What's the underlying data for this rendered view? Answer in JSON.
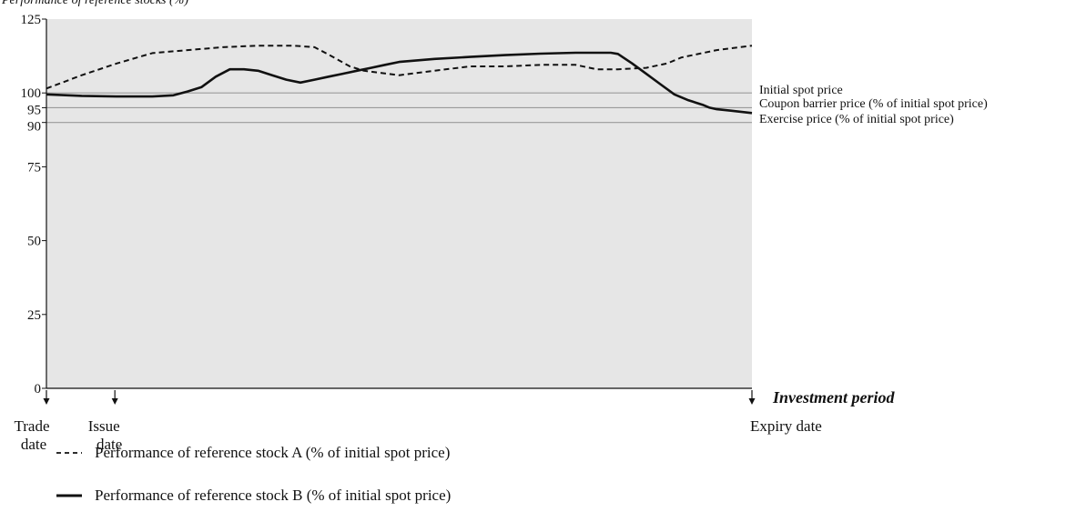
{
  "chart_data": {
    "type": "line",
    "title": "",
    "header_text": "Performance of reference stocks (%)",
    "xlabel": "Investment period",
    "ylabel": "",
    "xlim": [
      0,
      100
    ],
    "ylim": [
      0,
      125
    ],
    "yticks": [
      0,
      25,
      50,
      75,
      90,
      95,
      100,
      125
    ],
    "grid": false,
    "events": [
      {
        "x": 0,
        "lines": [
          "Trade",
          "date"
        ],
        "align": "center"
      },
      {
        "x": 9.7,
        "lines": [
          "Issue",
          "date"
        ],
        "align": "center"
      },
      {
        "x": 100,
        "lines": [
          "Expiry date"
        ],
        "align": "start"
      }
    ],
    "reference_lines": [
      {
        "name": "Initial spot price",
        "y": 100,
        "label": "Initial spot price"
      },
      {
        "name": "Coupon barrier price",
        "y": 95,
        "label": "Coupon barrier price (% of initial spot price)"
      },
      {
        "name": "Exercise price",
        "y": 90,
        "label": "Exercise price (% of initial spot price)"
      }
    ],
    "series": [
      {
        "name": "Performance of reference stock A (% of initial spot price)",
        "style": "dashed",
        "x": [
          0,
          5,
          10,
          15,
          20,
          25,
          30,
          35,
          38,
          40,
          43,
          45,
          50,
          55,
          60,
          65,
          70,
          75,
          78,
          81,
          85,
          88,
          90,
          95,
          100
        ],
        "y": [
          101.5,
          106,
          110,
          113.5,
          114.5,
          115.5,
          116,
          116,
          115.5,
          113,
          109,
          107.5,
          106,
          107.5,
          109,
          109,
          109.5,
          109.5,
          108,
          108,
          108.5,
          110,
          112,
          114.5,
          116
        ]
      },
      {
        "name": "Performance of reference stock B (% of initial spot price)",
        "style": "solid",
        "x": [
          0,
          5,
          10,
          15,
          18,
          20,
          22,
          24,
          26,
          28,
          30,
          32,
          34,
          36,
          38,
          40,
          42,
          44,
          46,
          48,
          50,
          55,
          60,
          65,
          70,
          75,
          80,
          81,
          83,
          85,
          87,
          89,
          91,
          93,
          94,
          95,
          97,
          100
        ],
        "y": [
          99.5,
          99,
          98.8,
          98.8,
          99.2,
          100.5,
          102,
          105.5,
          108,
          108,
          107.5,
          106,
          104.5,
          103.5,
          104.5,
          105.5,
          106.5,
          107.5,
          108.5,
          109.5,
          110.5,
          111.5,
          112.2,
          112.8,
          113.3,
          113.6,
          113.6,
          113.2,
          110,
          106.5,
          103,
          99.5,
          97.5,
          96,
          95,
          94.5,
          94,
          93.2
        ]
      }
    ],
    "legend": [
      {
        "series": 0,
        "text": "Performance of reference stock A (% of initial spot price)"
      },
      {
        "series": 1,
        "text": "Performance of reference stock B (% of initial spot price)"
      }
    ],
    "legend_position": "bottom-left",
    "colors": {
      "plot_background": "#e6e6e6",
      "line": "#111111",
      "reference_line": "#9a9a9a",
      "axis": "#111111"
    }
  }
}
